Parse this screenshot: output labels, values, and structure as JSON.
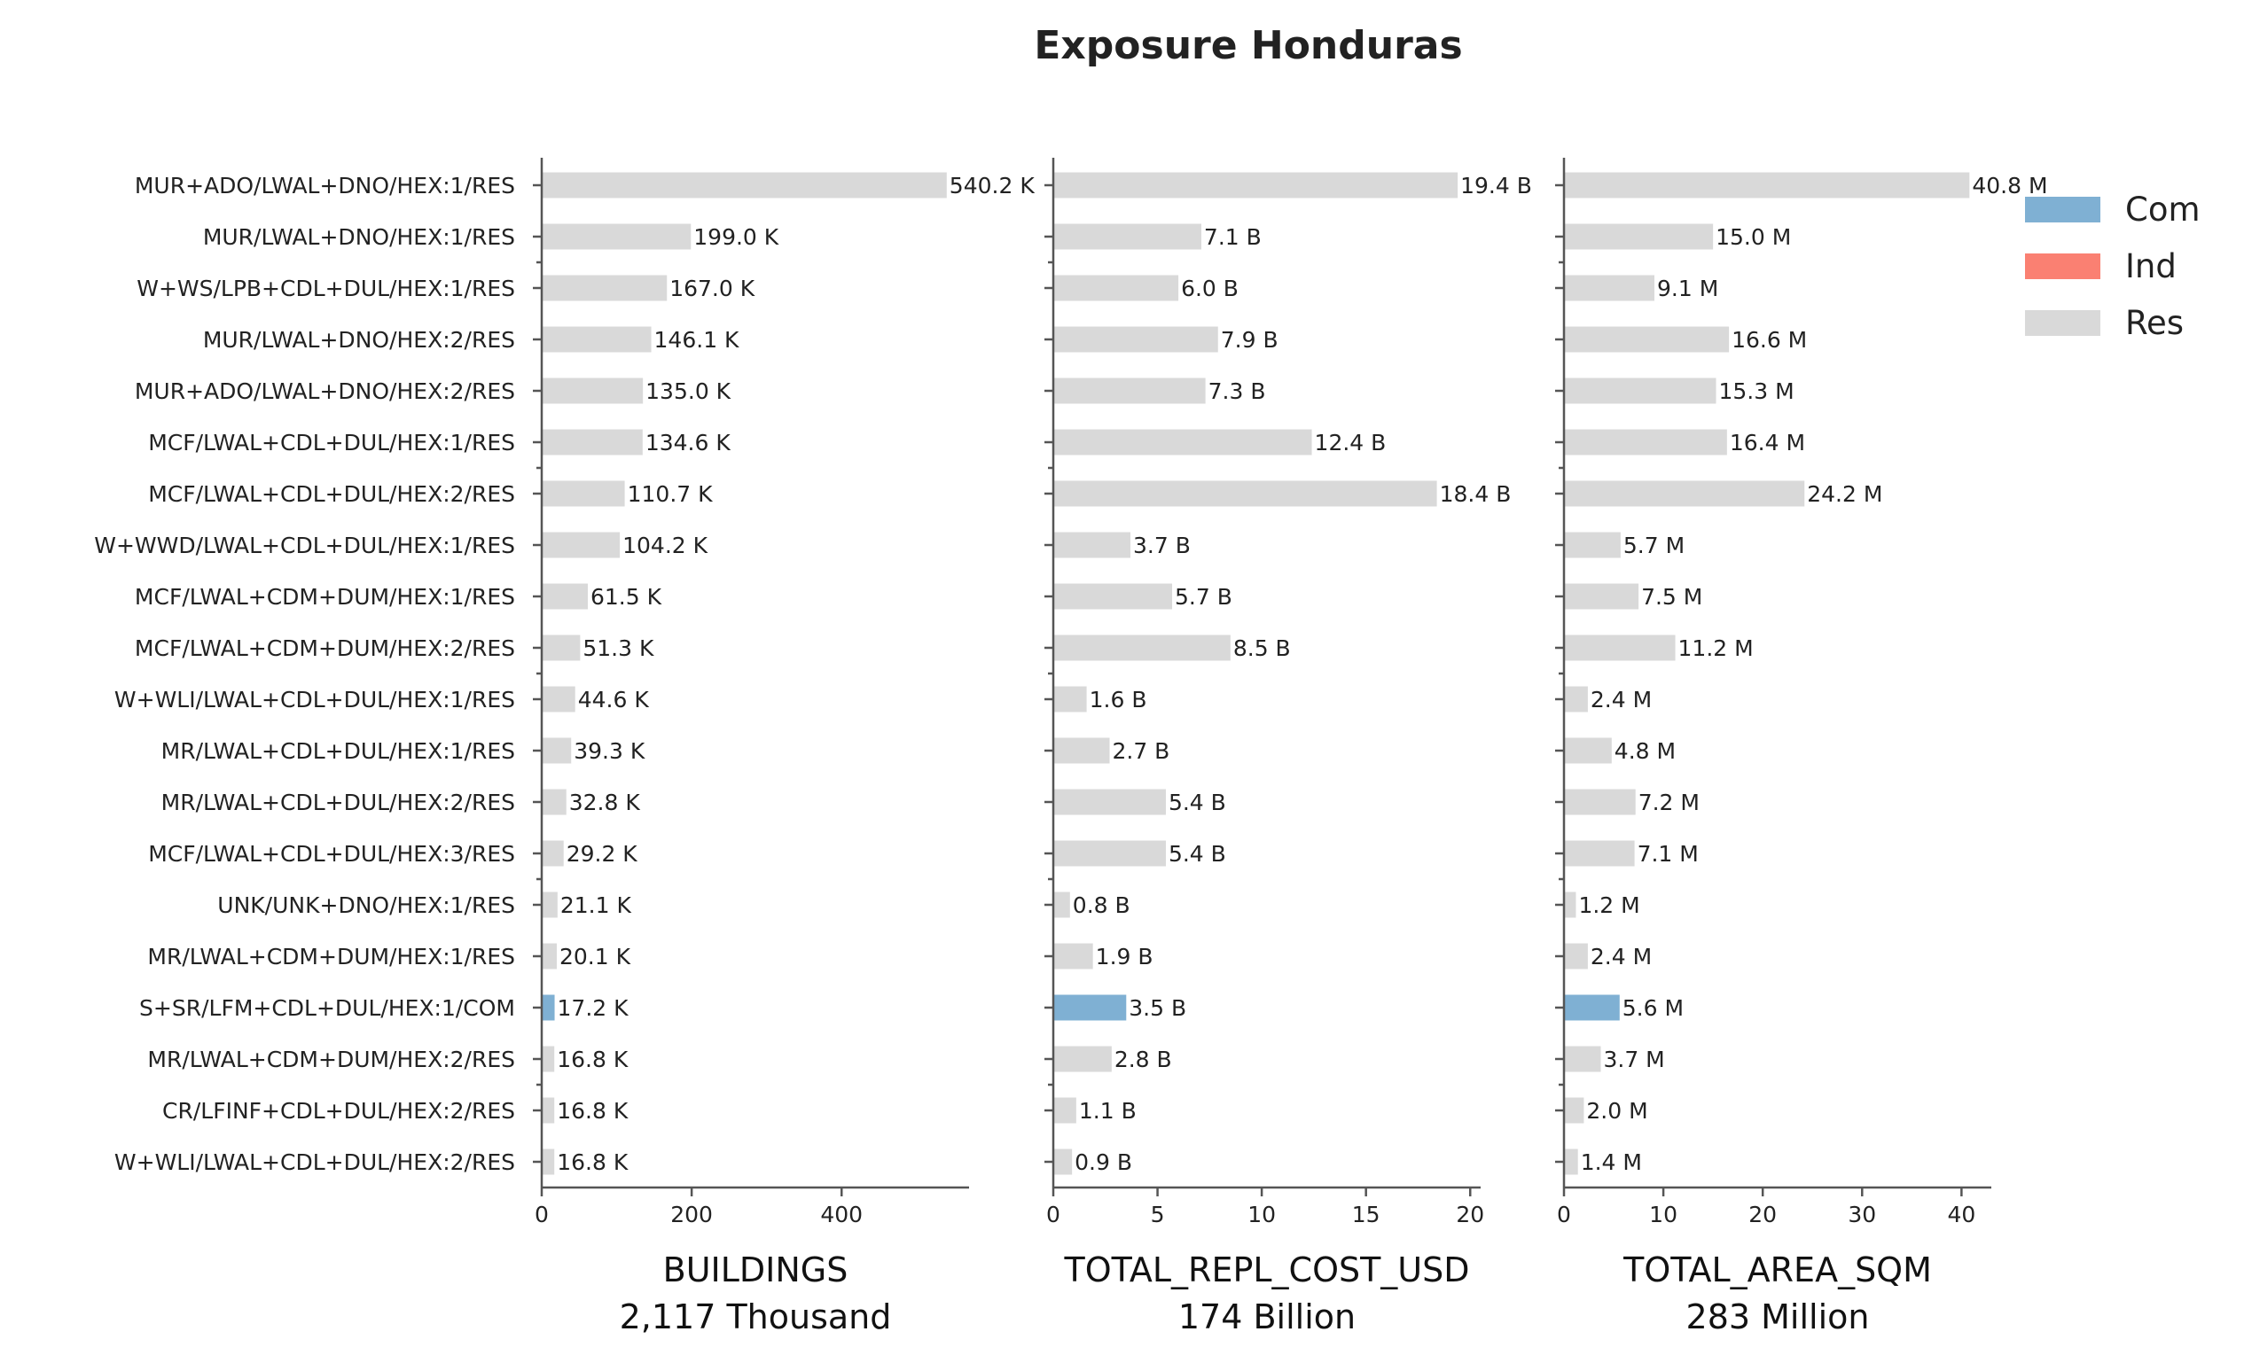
{
  "chart_data": {
    "type": "bar",
    "orientation": "horizontal",
    "title": "Exposure Honduras",
    "categories": [
      "MUR+ADO/LWAL+DNO/HEX:1/RES",
      "MUR/LWAL+DNO/HEX:1/RES",
      "W+WS/LPB+CDL+DUL/HEX:1/RES",
      "MUR/LWAL+DNO/HEX:2/RES",
      "MUR+ADO/LWAL+DNO/HEX:2/RES",
      "MCF/LWAL+CDL+DUL/HEX:1/RES",
      "MCF/LWAL+CDL+DUL/HEX:2/RES",
      "W+WWD/LWAL+CDL+DUL/HEX:1/RES",
      "MCF/LWAL+CDM+DUM/HEX:1/RES",
      "MCF/LWAL+CDM+DUM/HEX:2/RES",
      "W+WLI/LWAL+CDL+DUL/HEX:1/RES",
      "MR/LWAL+CDL+DUL/HEX:1/RES",
      "MR/LWAL+CDL+DUL/HEX:2/RES",
      "MCF/LWAL+CDL+DUL/HEX:3/RES",
      "UNK/UNK+DNO/HEX:1/RES",
      "MR/LWAL+CDM+DUM/HEX:1/RES",
      "S+SR/LFM+CDL+DUL/HEX:1/COM",
      "MR/LWAL+CDM+DUM/HEX:2/RES",
      "CR/LFINF+CDL+DUL/HEX:2/RES",
      "W+WLI/LWAL+CDL+DUL/HEX:2/RES"
    ],
    "occupancy": [
      "Res",
      "Res",
      "Res",
      "Res",
      "Res",
      "Res",
      "Res",
      "Res",
      "Res",
      "Res",
      "Res",
      "Res",
      "Res",
      "Res",
      "Res",
      "Res",
      "Com",
      "Res",
      "Res",
      "Res"
    ],
    "legend": {
      "placement": "top-right",
      "entries": [
        {
          "name": "Com",
          "color": "#7fb0d3"
        },
        {
          "name": "Ind",
          "color": "#fa8072"
        },
        {
          "name": "Res",
          "color": "#d9d9d9"
        }
      ]
    },
    "panels": [
      {
        "xlabel": "BUILDINGS",
        "total": "2,117 Thousand",
        "xlim": [
          0,
          570
        ],
        "ticks": [
          0,
          200,
          400
        ],
        "values": [
          540.2,
          199.0,
          167.0,
          146.1,
          135.0,
          134.6,
          110.7,
          104.2,
          61.5,
          51.3,
          44.6,
          39.3,
          32.8,
          29.2,
          21.1,
          20.1,
          17.2,
          16.8,
          16.8,
          16.8
        ],
        "labels": [
          "540.2 K",
          "199.0 K",
          "167.0 K",
          "146.1 K",
          "135.0 K",
          "134.6 K",
          "110.7 K",
          "104.2 K",
          "61.5 K",
          "51.3 K",
          "44.6 K",
          "39.3 K",
          "32.8 K",
          "29.2 K",
          "21.1 K",
          "20.1 K",
          "17.2 K",
          "16.8 K",
          "16.8 K",
          "16.8 K"
        ]
      },
      {
        "xlabel": "TOTAL_REPL_COST_USD",
        "total": "174 Billion",
        "xlim": [
          0,
          20.5
        ],
        "ticks": [
          0,
          5,
          10,
          15,
          20
        ],
        "values": [
          19.4,
          7.1,
          6.0,
          7.9,
          7.3,
          12.4,
          18.4,
          3.7,
          5.7,
          8.5,
          1.6,
          2.7,
          5.4,
          5.4,
          0.8,
          1.9,
          3.5,
          2.8,
          1.1,
          0.9
        ],
        "labels": [
          "19.4 B",
          "7.1 B",
          "6.0 B",
          "7.9 B",
          "7.3 B",
          "12.4 B",
          "18.4 B",
          "3.7 B",
          "5.7 B",
          "8.5 B",
          "1.6 B",
          "2.7 B",
          "5.4 B",
          "5.4 B",
          "0.8 B",
          "1.9 B",
          "3.5 B",
          "2.8 B",
          "1.1 B",
          "0.9 B"
        ]
      },
      {
        "xlabel": "TOTAL_AREA_SQM",
        "total": "283 Million",
        "xlim": [
          0,
          43
        ],
        "ticks": [
          0,
          10,
          20,
          30,
          40
        ],
        "values": [
          40.8,
          15.0,
          9.1,
          16.6,
          15.3,
          16.4,
          24.2,
          5.7,
          7.5,
          11.2,
          2.4,
          4.8,
          7.2,
          7.1,
          1.2,
          2.4,
          5.6,
          3.7,
          2.0,
          1.4
        ],
        "labels": [
          "40.8 M",
          "15.0 M",
          "9.1 M",
          "16.6 M",
          "15.3 M",
          "16.4 M",
          "24.2 M",
          "5.7 M",
          "7.5 M",
          "11.2 M",
          "2.4 M",
          "4.8 M",
          "7.2 M",
          "7.1 M",
          "1.2 M",
          "2.4 M",
          "5.6 M",
          "3.7 M",
          "2.0 M",
          "1.4 M"
        ]
      }
    ]
  }
}
